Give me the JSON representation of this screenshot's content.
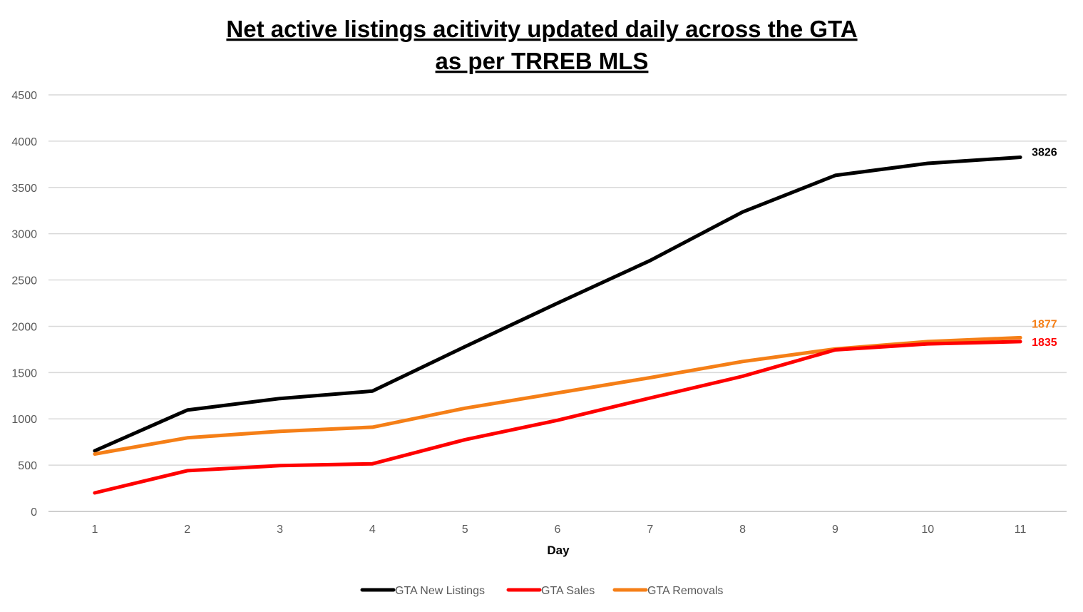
{
  "chart_data": {
    "type": "line",
    "title_lines": [
      "Net active listings acitivity updated daily across the GTA",
      "as per TRREB MLS"
    ],
    "xlabel": "Day",
    "ylabel": "",
    "x": [
      1,
      2,
      3,
      4,
      5,
      6,
      7,
      8,
      9,
      10,
      11
    ],
    "ylim": [
      0,
      4500
    ],
    "yticks": [
      0,
      500,
      1000,
      1500,
      2000,
      2500,
      3000,
      3500,
      4000,
      4500
    ],
    "grid": true,
    "legend_position": "bottom",
    "series": [
      {
        "name": "GTA New Listings",
        "color": "#000000",
        "values": [
          655,
          1095,
          1220,
          1300,
          1780,
          2250,
          2710,
          3235,
          3630,
          3760,
          3826
        ],
        "end_label": "3826"
      },
      {
        "name": "GTA Sales",
        "color": "#ff0000",
        "values": [
          200,
          440,
          495,
          515,
          775,
          985,
          1225,
          1460,
          1745,
          1810,
          1835
        ],
        "end_label": "1835"
      },
      {
        "name": "GTA Removals",
        "color": "#f57f17",
        "values": [
          620,
          795,
          865,
          910,
          1115,
          1280,
          1445,
          1620,
          1755,
          1835,
          1877
        ],
        "end_label": "1877"
      }
    ]
  }
}
